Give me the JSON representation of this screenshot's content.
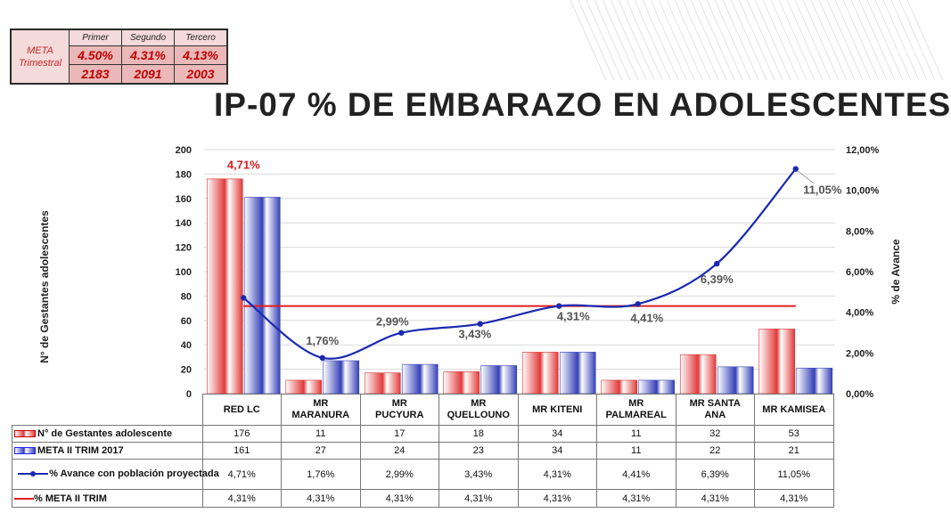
{
  "meta_table": {
    "label": "META Trimestral",
    "headers": [
      "Primer",
      "Segundo",
      "Tercero"
    ],
    "percents": [
      "4.50%",
      "4.31%",
      "4.13%"
    ],
    "counts": [
      "2183",
      "2091",
      "2003"
    ]
  },
  "chart_data": {
    "type": "bar",
    "title": "IP-07 % DE EMBARAZO EN ADOLESCENTES",
    "ylabel": "N° de Gestantes adolescentes",
    "y2label": "% de Avance",
    "ylim": [
      0,
      200
    ],
    "y_ticks": [
      "0",
      "20",
      "40",
      "60",
      "80",
      "100",
      "120",
      "140",
      "160",
      "180",
      "200"
    ],
    "y2lim": [
      0,
      12
    ],
    "y2_ticks": [
      "0,00%",
      "2,00%",
      "4,00%",
      "6,00%",
      "8,00%",
      "10,00%",
      "12,00%"
    ],
    "grid": true,
    "legend": "table-bottom",
    "categories": [
      "RED LC",
      "MR MARANURA",
      "MR PUCYURA",
      "MR QUELLOUNO",
      "MR KITENI",
      "MR PALMAREAL",
      "MR SANTA ANA",
      "MR KAMISEA"
    ],
    "series": [
      {
        "name": "N° de Gestantes adolescente",
        "type": "bar",
        "axis": "left",
        "color": "#e23a3a",
        "values": [
          176,
          11,
          17,
          18,
          34,
          11,
          32,
          53
        ],
        "labels": [
          "176",
          "11",
          "17",
          "18",
          "34",
          "11",
          "32",
          "53"
        ]
      },
      {
        "name": "META II TRIM 2017",
        "type": "bar",
        "axis": "left",
        "color": "#3540b8",
        "values": [
          161,
          27,
          24,
          23,
          34,
          11,
          22,
          21
        ],
        "labels": [
          "161",
          "27",
          "24",
          "23",
          "34",
          "11",
          "22",
          "21"
        ]
      },
      {
        "name": "% Avance con población proyectada",
        "type": "line",
        "axis": "right",
        "color": "#1a2ab0",
        "values": [
          4.71,
          1.76,
          2.99,
          3.43,
          4.31,
          4.41,
          6.39,
          11.05
        ],
        "labels": [
          "4,71%",
          "1,76%",
          "2,99%",
          "3,43%",
          "4,31%",
          "4,41%",
          "6,39%",
          "11,05%"
        ]
      },
      {
        "name": "% META II TRIM",
        "type": "line",
        "axis": "right",
        "color": "#e01e1e",
        "values": [
          4.31,
          4.31,
          4.31,
          4.31,
          4.31,
          4.31,
          4.31,
          4.31
        ],
        "labels": [
          "4,31%",
          "4,31%",
          "4,31%",
          "4,31%",
          "4,31%",
          "4,31%",
          "4,31%",
          "4,31%"
        ]
      }
    ]
  },
  "table": {
    "category_labels": [
      [
        "RED LC"
      ],
      [
        "MR",
        "MARANURA"
      ],
      [
        "MR",
        "PUCYURA"
      ],
      [
        "MR",
        "QUELLOUNO"
      ],
      [
        "MR KITENI"
      ],
      [
        "MR",
        "PALMAREAL"
      ],
      [
        "MR SANTA",
        "ANA"
      ],
      [
        "MR KAMISEA"
      ]
    ]
  }
}
